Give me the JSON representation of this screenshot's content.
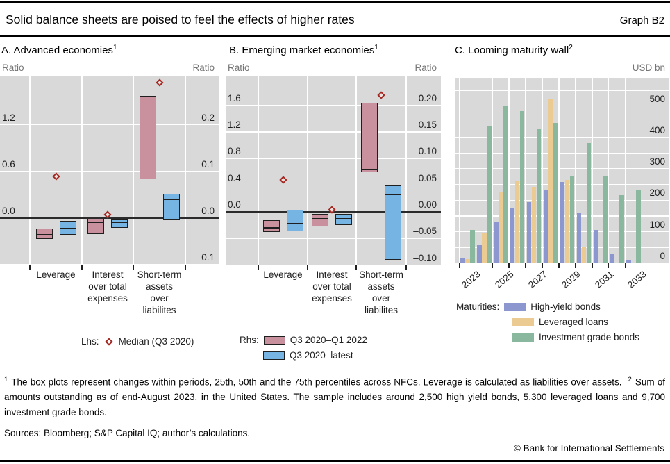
{
  "header": {
    "title": "Solid balance sheets are poised to feel the effects of higher rates",
    "graph_label": "Graph B2"
  },
  "panels": {
    "a": {
      "title": "A. Advanced economies",
      "sup": "1",
      "unit_left": "Ratio",
      "unit_right": "Ratio",
      "category_lines": [
        [
          "Leverage"
        ],
        [
          "Interest",
          "over total",
          "expenses"
        ],
        [
          "Short-term",
          "assets",
          "over",
          "liabilites"
        ]
      ]
    },
    "b": {
      "title": "B. Emerging market economies",
      "sup": "1",
      "unit_left": "Ratio",
      "unit_right": "Ratio",
      "category_lines": [
        [
          "Leverage"
        ],
        [
          "Interest",
          "over total",
          "expenses"
        ],
        [
          "Short-term",
          "assets",
          "over",
          "liabilites"
        ]
      ]
    },
    "c": {
      "title": "C. Looming maturity wall",
      "sup": "2",
      "unit_right": "USD bn"
    }
  },
  "colors": {
    "panel_bg": "#d9d9d9",
    "grid": "#ffffff",
    "zero_line": "#2b2b2b",
    "unit_text": "#757575",
    "pink": "#c9909e",
    "blue": "#76b5e3",
    "diamond_red": "#a32822",
    "purple": "#8c97cf",
    "tan": "#eccb92",
    "green": "#8ab89f"
  },
  "chart_data": [
    {
      "type": "boxplot",
      "panel": "A",
      "title": "A. Advanced economies",
      "lhs_axis": {
        "unit": "Ratio",
        "ticks": [
          {
            "label": "1.2",
            "v": 1.2
          },
          {
            "label": "0.6",
            "v": 0.6
          },
          {
            "label": "0.0",
            "v": 0.0
          }
        ],
        "range": [
          -0.61,
          1.82
        ]
      },
      "rhs_axis": {
        "unit": "Ratio",
        "ticks": [
          {
            "label": "0.2",
            "v": 0.2
          },
          {
            "label": "0.1",
            "v": 0.1
          },
          {
            "label": "0.0",
            "v": 0.0
          },
          {
            "label": "–0.1",
            "v": -0.1
          }
        ],
        "range": [
          -0.102,
          0.303
        ]
      },
      "categories": [
        "Leverage",
        "Interest over total expenses",
        "Short-term assets over liabilites"
      ],
      "median_q3_2020_lhs": [
        0.53,
        0.04,
        1.74
      ],
      "series": [
        {
          "name": "Q3 2020–Q1 2022",
          "axis": "rhs",
          "color": "pink",
          "boxes_25_50_75": [
            [
              -0.045,
              -0.036,
              -0.023
            ],
            [
              -0.035,
              -0.01,
              -0.002
            ],
            [
              0.083,
              0.09,
              0.262
            ]
          ]
        },
        {
          "name": "Q3 2020–latest",
          "axis": "rhs",
          "color": "blue",
          "boxes_25_50_75": [
            [
              -0.036,
              -0.022,
              -0.007
            ],
            [
              -0.021,
              -0.01,
              -0.004
            ],
            [
              -0.005,
              0.039,
              0.052
            ]
          ]
        }
      ]
    },
    {
      "type": "boxplot",
      "panel": "B",
      "title": "B. Emerging market economies",
      "lhs_axis": {
        "unit": "Ratio",
        "ticks": [
          {
            "label": "1.6",
            "v": 1.6
          },
          {
            "label": "1.2",
            "v": 1.2
          },
          {
            "label": "0.8",
            "v": 0.8
          },
          {
            "label": "0.4",
            "v": 0.4
          },
          {
            "label": "0.0",
            "v": 0.0
          }
        ],
        "range": [
          -0.79,
          2.04
        ]
      },
      "rhs_axis": {
        "unit": "Ratio",
        "ticks": [
          {
            "label": "0.20",
            "v": 0.2
          },
          {
            "label": "0.15",
            "v": 0.15
          },
          {
            "label": "0.10",
            "v": 0.1
          },
          {
            "label": "0.05",
            "v": 0.05
          },
          {
            "label": "0.00",
            "v": 0.0
          },
          {
            "label": "–0.05",
            "v": -0.05
          },
          {
            "label": "–0.10",
            "v": -0.1
          }
        ],
        "range": [
          -0.099,
          0.255
        ]
      },
      "categories": [
        "Leverage",
        "Interest over total expenses",
        "Short-term assets over liabilites"
      ],
      "median_q3_2020_lhs": [
        0.48,
        0.03,
        1.75
      ],
      "series": [
        {
          "name": "Q3 2020–Q1 2022",
          "axis": "rhs",
          "color": "pink",
          "boxes_25_50_75": [
            [
              -0.038,
              -0.03,
              -0.016
            ],
            [
              -0.028,
              -0.012,
              -0.004
            ],
            [
              0.075,
              0.08,
              0.205
            ]
          ]
        },
        {
          "name": "Q3 2020–latest",
          "axis": "rhs",
          "color": "blue",
          "boxes_25_50_75": [
            [
              -0.037,
              -0.022,
              0.004
            ],
            [
              -0.025,
              -0.013,
              -0.004
            ],
            [
              -0.09,
              0.033,
              0.05
            ]
          ]
        }
      ]
    },
    {
      "type": "bar",
      "panel": "C",
      "title": "C. Looming maturity wall",
      "y_axis": {
        "unit": "USD bn",
        "ticks": [
          0,
          100,
          200,
          300,
          400,
          500
        ],
        "grid_step": 50,
        "range": [
          0,
          588
        ]
      },
      "categories": [
        "2023",
        "2024",
        "2025",
        "2026",
        "2027",
        "2028",
        "2029",
        "2030",
        "2031",
        "2032",
        "2033"
      ],
      "x_tick_labels": [
        "2023",
        "2025",
        "2027",
        "2029",
        "2031",
        "2033"
      ],
      "series": [
        {
          "name": "High-yield bonds",
          "color": "purple",
          "values": [
            16,
            57,
            132,
            175,
            194,
            234,
            258,
            158,
            105,
            28,
            8
          ]
        },
        {
          "name": "Leveraged loans",
          "color": "tan",
          "values": [
            13,
            98,
            228,
            264,
            242,
            523,
            266,
            54,
            2,
            2,
            2
          ]
        },
        {
          "name": "Investment grade bonds",
          "color": "green",
          "values": [
            105,
            435,
            500,
            483,
            428,
            446,
            278,
            383,
            276,
            216,
            232
          ]
        }
      ]
    }
  ],
  "legend": {
    "lhs_label": "Lhs:",
    "lhs_item": "Median (Q3 2020)",
    "rhs_label": "Rhs:",
    "rhs_items": [
      "Q3 2020–Q1 2022",
      "Q3 2020–latest"
    ],
    "maturities_label": "Maturities:",
    "maturities_items": [
      "High-yield bonds",
      "Leveraged loans",
      "Investment grade bonds"
    ]
  },
  "footnotes": [
    {
      "marker": "1",
      "text": "The box plots represent changes within periods, 25th, 50th and the 75th percentiles across NFCs. Leverage is calculated as liabilities over assets."
    },
    {
      "marker": "2",
      "text": "Sum of amounts outstanding as of end-August 2023, in the United States. The sample includes around 2,500 high yield bonds, 5,300 leveraged loans and 9,700 investment grade bonds."
    }
  ],
  "sources": "Sources: Bloomberg; S&P Capital IQ; author’s calculations.",
  "copyright": "© Bank for International Settlements"
}
